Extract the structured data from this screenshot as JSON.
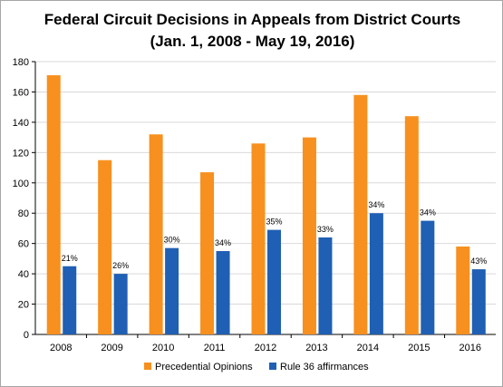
{
  "chart_data": {
    "type": "bar",
    "title": "Federal Circuit Decisions in Appeals from District Courts",
    "subtitle": "(Jan. 1, 2008 - May 19, 2016)",
    "categories": [
      "2008",
      "2009",
      "2010",
      "2011",
      "2012",
      "2013",
      "2014",
      "2015",
      "2016"
    ],
    "series": [
      {
        "name": "Precedential Opinions",
        "color": "#f7901e",
        "values": [
          171,
          115,
          132,
          107,
          126,
          130,
          158,
          144,
          58
        ]
      },
      {
        "name": "Rule 36 affirmances",
        "color": "#1f5fb4",
        "values": [
          45,
          40,
          57,
          55,
          69,
          64,
          80,
          75,
          43
        ],
        "data_labels": [
          "21%",
          "26%",
          "30%",
          "34%",
          "35%",
          "33%",
          "34%",
          "34%",
          "43%"
        ]
      }
    ],
    "ylim": [
      0,
      180
    ],
    "yticks": [
      "0",
      "20",
      "40",
      "60",
      "80",
      "100",
      "120",
      "140",
      "160",
      "180"
    ],
    "grid": true,
    "legend_position": "bottom"
  }
}
